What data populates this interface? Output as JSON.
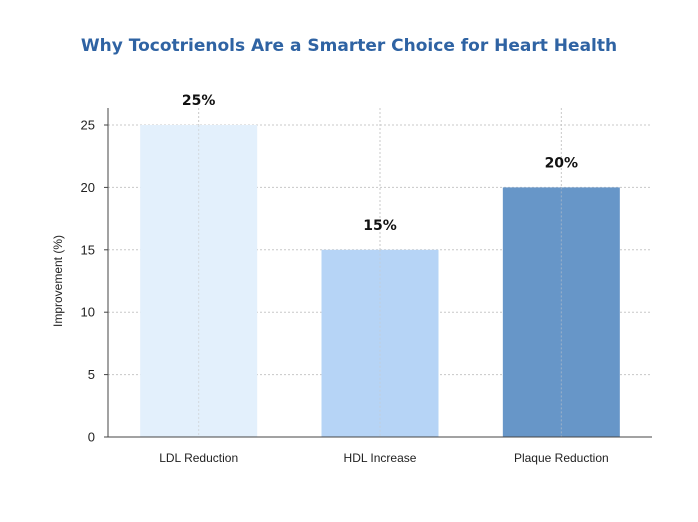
{
  "chart_data": {
    "type": "bar",
    "title": "Why Tocotrienols Are a Smarter Choice for Heart Health",
    "ylabel": "Improvement (%)",
    "xlabel": "",
    "categories": [
      "LDL Reduction",
      "HDL Increase",
      "Plaque Reduction"
    ],
    "values": [
      25,
      15,
      20
    ],
    "data_labels": [
      "25%",
      "15%",
      "20%"
    ],
    "colors": [
      "#e3f0fc",
      "#b6d4f6",
      "#6796c8"
    ],
    "ylim": [
      0,
      28
    ],
    "yticks": [
      0,
      5,
      10,
      15,
      20,
      25
    ],
    "grid": true
  }
}
